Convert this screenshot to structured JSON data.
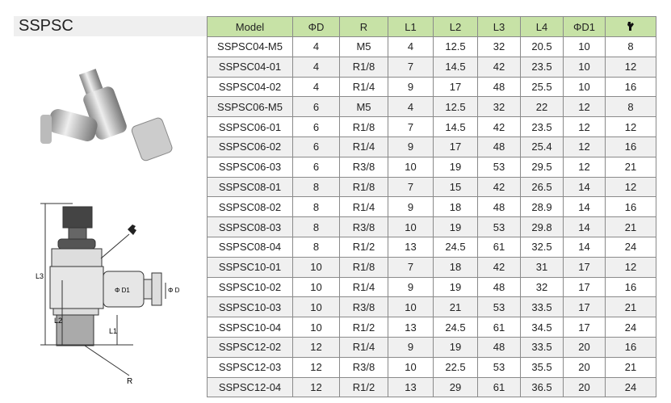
{
  "title": "SSPSC",
  "columns": [
    "Model",
    "ΦD",
    "R",
    "L1",
    "L2",
    "L3",
    "L4",
    "ΦD1",
    ""
  ],
  "wrench_icon": "wrench-icon",
  "header_color": "#c7e2a6",
  "rows": [
    [
      "SSPSC04-M5",
      "4",
      "M5",
      "4",
      "12.5",
      "32",
      "20.5",
      "10",
      "8"
    ],
    [
      "SSPSC04-01",
      "4",
      "R1/8",
      "7",
      "14.5",
      "42",
      "23.5",
      "10",
      "12"
    ],
    [
      "SSPSC04-02",
      "4",
      "R1/4",
      "9",
      "17",
      "48",
      "25.5",
      "10",
      "16"
    ],
    [
      "SSPSC06-M5",
      "6",
      "M5",
      "4",
      "12.5",
      "32",
      "22",
      "12",
      "8"
    ],
    [
      "SSPSC06-01",
      "6",
      "R1/8",
      "7",
      "14.5",
      "42",
      "23.5",
      "12",
      "12"
    ],
    [
      "SSPSC06-02",
      "6",
      "R1/4",
      "9",
      "17",
      "48",
      "25.4",
      "12",
      "16"
    ],
    [
      "SSPSC06-03",
      "6",
      "R3/8",
      "10",
      "19",
      "53",
      "29.5",
      "12",
      "21"
    ],
    [
      "SSPSC08-01",
      "8",
      "R1/8",
      "7",
      "15",
      "42",
      "26.5",
      "14",
      "12"
    ],
    [
      "SSPSC08-02",
      "8",
      "R1/4",
      "9",
      "18",
      "48",
      "28.9",
      "14",
      "16"
    ],
    [
      "SSPSC08-03",
      "8",
      "R3/8",
      "10",
      "19",
      "53",
      "29.8",
      "14",
      "21"
    ],
    [
      "SSPSC08-04",
      "8",
      "R1/2",
      "13",
      "24.5",
      "61",
      "32.5",
      "14",
      "24"
    ],
    [
      "SSPSC10-01",
      "10",
      "R1/8",
      "7",
      "18",
      "42",
      "31",
      "17",
      "12"
    ],
    [
      "SSPSC10-02",
      "10",
      "R1/4",
      "9",
      "19",
      "48",
      "32",
      "17",
      "16"
    ],
    [
      "SSPSC10-03",
      "10",
      "R3/8",
      "10",
      "21",
      "53",
      "33.5",
      "17",
      "21"
    ],
    [
      "SSPSC10-04",
      "10",
      "R1/2",
      "13",
      "24.5",
      "61",
      "34.5",
      "17",
      "24"
    ],
    [
      "SSPSC12-02",
      "12",
      "R1/4",
      "9",
      "19",
      "48",
      "33.5",
      "20",
      "16"
    ],
    [
      "SSPSC12-03",
      "12",
      "R3/8",
      "10",
      "22.5",
      "53",
      "35.5",
      "20",
      "21"
    ],
    [
      "SSPSC12-04",
      "12",
      "R1/2",
      "13",
      "29",
      "61",
      "36.5",
      "20",
      "24"
    ]
  ],
  "drawing_labels": {
    "L3": "L3",
    "L2": "L2",
    "L1": "L1",
    "R": "R",
    "D1": "Φ D1",
    "D": "Φ D"
  }
}
